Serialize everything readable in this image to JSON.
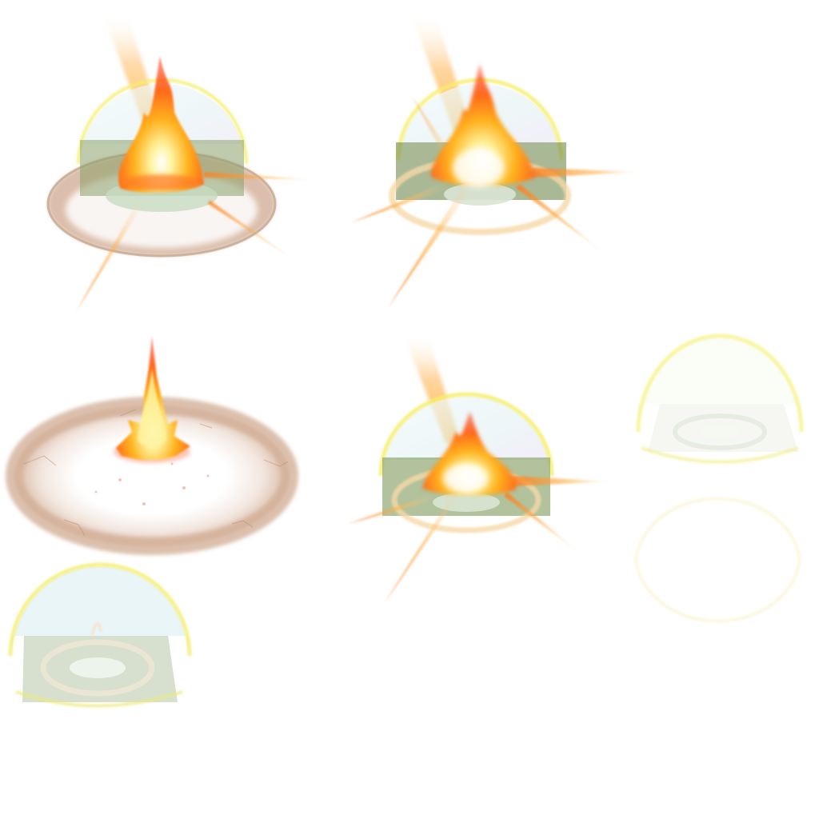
{
  "sheet": {
    "background": "#ffffff",
    "frames": [
      {
        "id": "frame-1",
        "label": "",
        "stage": "fire-dome-burst"
      },
      {
        "id": "frame-2",
        "label": "",
        "stage": "fire-dome-rays"
      },
      {
        "id": "frame-3",
        "label": "",
        "stage": "ground-blast-flame"
      },
      {
        "id": "frame-4",
        "label": "",
        "stage": "fire-dome-rays-small"
      },
      {
        "id": "frame-5",
        "label": "",
        "stage": "empty-dome-fading"
      },
      {
        "id": "frame-6",
        "label": "",
        "stage": "dome-outline-faint"
      },
      {
        "id": "frame-7",
        "label": "",
        "stage": "empty-dome"
      }
    ]
  },
  "palette": {
    "flame_core": "#fff7c2",
    "flame_mid": "#ffb21e",
    "flame_outer": "#ff5a1a",
    "dome_glow": "#f3f06a",
    "dome_fill": "#e6f4f6",
    "ground_green": "#7f9a5e",
    "scorch_ring": "#c9a78f"
  }
}
